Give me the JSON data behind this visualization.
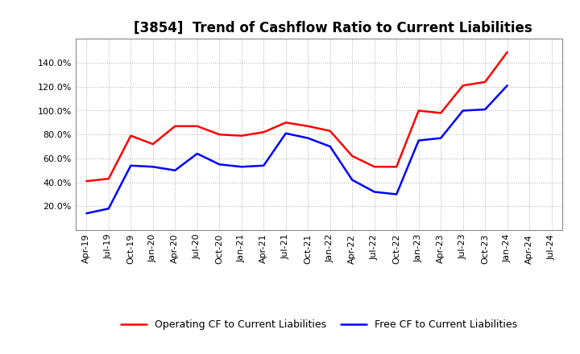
{
  "title": "[3854]  Trend of Cashflow Ratio to Current Liabilities",
  "x_labels": [
    "Apr-19",
    "Jul-19",
    "Oct-19",
    "Jan-20",
    "Apr-20",
    "Jul-20",
    "Oct-20",
    "Jan-21",
    "Apr-21",
    "Jul-21",
    "Oct-21",
    "Jan-22",
    "Apr-22",
    "Jul-22",
    "Oct-22",
    "Jan-23",
    "Apr-23",
    "Jul-23",
    "Oct-23",
    "Jan-24",
    "Apr-24",
    "Jul-24"
  ],
  "operating_cf": [
    41,
    43,
    79,
    72,
    87,
    87,
    80,
    79,
    82,
    90,
    87,
    83,
    62,
    53,
    53,
    100,
    98,
    121,
    124,
    149,
    null,
    null
  ],
  "free_cf": [
    14,
    18,
    54,
    53,
    50,
    64,
    55,
    53,
    54,
    81,
    77,
    70,
    42,
    32,
    30,
    75,
    77,
    100,
    101,
    121,
    null,
    null
  ],
  "operating_color": "#ff0000",
  "free_color": "#0000ff",
  "ylim": [
    0,
    160
  ],
  "ytick_values": [
    20,
    40,
    60,
    80,
    100,
    120,
    140
  ],
  "ytick_labels": [
    "20.0%",
    "40.0%",
    "60.0%",
    "80.0%",
    "100.0%",
    "120.0%",
    "140.0%"
  ],
  "legend_operating": "Operating CF to Current Liabilities",
  "legend_free": "Free CF to Current Liabilities",
  "background_color": "#ffffff",
  "plot_bg_color": "#ffffff",
  "grid_color": "#999999",
  "linewidth": 1.8,
  "title_fontsize": 12,
  "tick_fontsize": 8,
  "legend_fontsize": 9
}
